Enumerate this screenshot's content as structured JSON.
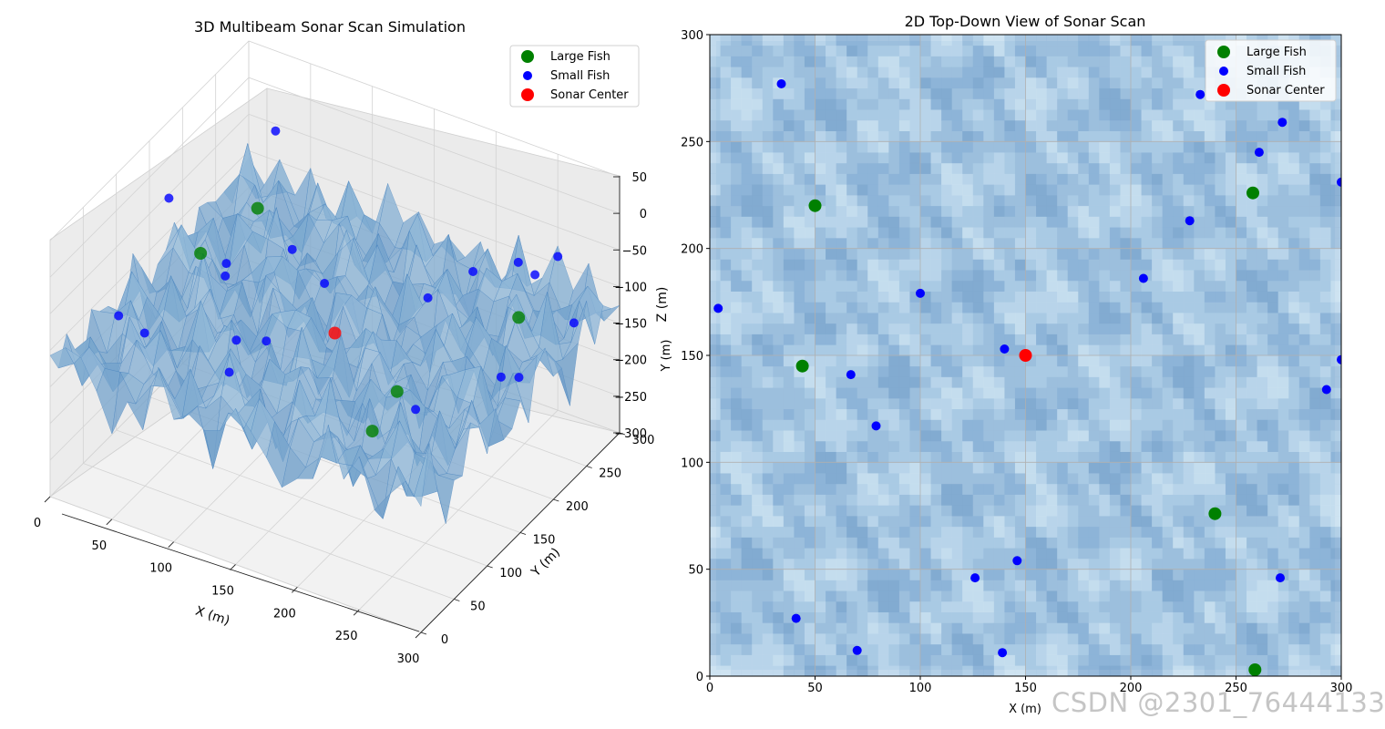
{
  "chart_data": [
    {
      "type": "surface3d",
      "title": "3D Multibeam Sonar Scan Simulation",
      "xlabel": "X (m)",
      "ylabel": "Y (m)",
      "zlabel": "Z (m)",
      "xlim": [
        0,
        300
      ],
      "ylim": [
        0,
        300
      ],
      "zlim": [
        -300,
        50
      ],
      "x_ticks": [
        "0",
        "50",
        "100",
        "150",
        "200",
        "250",
        "300"
      ],
      "y_ticks": [
        "0",
        "50",
        "100",
        "150",
        "200",
        "250",
        "300"
      ],
      "z_ticks": [
        "50",
        "0",
        "−50",
        "−100",
        "−150",
        "−200",
        "−250",
        "−300"
      ],
      "legend": [
        "Large Fish",
        "Small Fish",
        "Sonar Center"
      ],
      "legend_position": "top-right",
      "series": [
        {
          "name": "Large Fish",
          "color": "#008000",
          "points": [
            [
              50,
              220
            ],
            [
              44,
              145
            ],
            [
              258,
              226
            ],
            [
              240,
              76
            ],
            [
              259,
              3
            ]
          ]
        },
        {
          "name": "Small Fish",
          "color": "#0000ff",
          "points": [
            [
              34,
              277
            ],
            [
              100,
              179
            ],
            [
              4,
              172
            ],
            [
              67,
              141
            ],
            [
              79,
              117
            ],
            [
              140,
              153
            ],
            [
              206,
              186
            ],
            [
              228,
              213
            ],
            [
              261,
              245
            ],
            [
              272,
              259
            ],
            [
              300,
              231
            ],
            [
              300,
              148
            ],
            [
              293,
              134
            ],
            [
              271,
              46
            ],
            [
              146,
              54
            ],
            [
              126,
              46
            ],
            [
              139,
              11
            ],
            [
              70,
              12
            ],
            [
              41,
              27
            ],
            [
              233,
              272
            ]
          ]
        },
        {
          "name": "Sonar Center",
          "color": "#ff0000",
          "points": [
            [
              150,
              150
            ]
          ]
        }
      ]
    },
    {
      "type": "contour",
      "title": "2D Top-Down View of Sonar Scan",
      "xlabel": "X (m)",
      "ylabel": "Y (m)",
      "xlim": [
        0,
        300
      ],
      "ylim": [
        0,
        300
      ],
      "grid": true,
      "x_ticks": [
        0,
        50,
        100,
        150,
        200,
        250,
        300
      ],
      "y_ticks": [
        0,
        50,
        100,
        150,
        200,
        250,
        300
      ],
      "legend": [
        "Large Fish",
        "Small Fish",
        "Sonar Center"
      ],
      "legend_position": "top-right",
      "series": [
        {
          "name": "Large Fish",
          "color": "#008000",
          "points": [
            [
              50,
              220
            ],
            [
              44,
              145
            ],
            [
              258,
              226
            ],
            [
              240,
              76
            ],
            [
              259,
              3
            ]
          ]
        },
        {
          "name": "Small Fish",
          "color": "#0000ff",
          "points": [
            [
              34,
              277
            ],
            [
              100,
              179
            ],
            [
              4,
              172
            ],
            [
              67,
              141
            ],
            [
              79,
              117
            ],
            [
              140,
              153
            ],
            [
              206,
              186
            ],
            [
              228,
              213
            ],
            [
              261,
              245
            ],
            [
              272,
              259
            ],
            [
              300,
              231
            ],
            [
              300,
              148
            ],
            [
              293,
              134
            ],
            [
              271,
              46
            ],
            [
              146,
              54
            ],
            [
              126,
              46
            ],
            [
              139,
              11
            ],
            [
              70,
              12
            ],
            [
              41,
              27
            ],
            [
              233,
              272
            ]
          ]
        },
        {
          "name": "Sonar Center",
          "color": "#ff0000",
          "points": [
            [
              150,
              150
            ]
          ]
        }
      ]
    }
  ],
  "watermark": "CSDN @2301_76444133"
}
